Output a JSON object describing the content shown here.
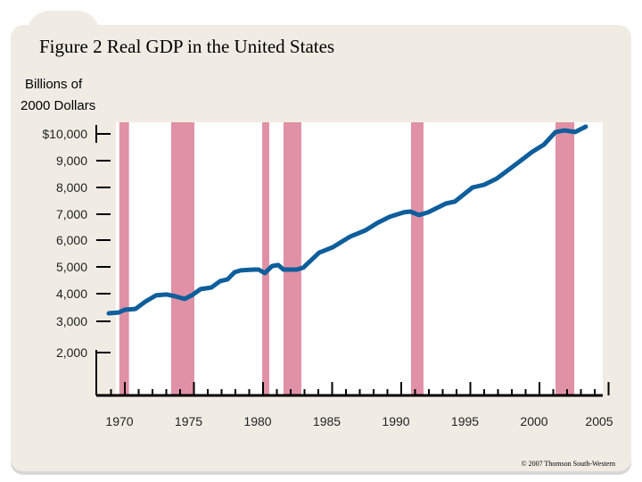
{
  "chart_data": {
    "type": "line",
    "title": "Figure 2 Real GDP in the United States",
    "ylabel_line1": "Billions of",
    "ylabel_line2": "2000 Dollars",
    "xlabel": "",
    "y_ticks": [
      "$10,000",
      "9,000",
      "8,000",
      "7,000",
      "6,000",
      "5,000",
      "4,000",
      "3,000",
      "2,000"
    ],
    "y_tick_values": [
      10000,
      9000,
      8000,
      7000,
      6000,
      5000,
      4000,
      3000,
      2000
    ],
    "x_ticks": [
      "1970",
      "1975",
      "1980",
      "1985",
      "1990",
      "1995",
      "2000",
      "2005"
    ],
    "x_tick_values": [
      1970,
      1975,
      1980,
      1985,
      1990,
      1995,
      2000,
      2005
    ],
    "xlim": [
      1969,
      2005
    ],
    "ylim": [
      2000,
      10300
    ],
    "grid": false,
    "series": [
      {
        "x": [
          1968.84,
          1969.55,
          1970.0,
          1970.77,
          1971.48,
          1972.26,
          1973.03,
          1973.68,
          1974.32,
          1974.84,
          1975.48,
          1976.26,
          1976.9,
          1977.42,
          1977.94,
          1978.39,
          1979.35,
          1979.68,
          1980.13,
          1980.65,
          1981.1,
          1981.48,
          1982.45,
          1982.9,
          1984.06,
          1985.03,
          1986.32,
          1987.42,
          1988.26,
          1989.16,
          1990.19,
          1990.65,
          1991.29,
          1991.94,
          1993.23,
          1993.87,
          1995.16,
          1996.0,
          1996.9,
          1998.39,
          1999.48,
          2000.32,
          2001.16,
          2001.81,
          2002.58,
          2003.35
        ],
        "values": [
          3290,
          3320,
          3420,
          3450,
          3710,
          3940,
          3970,
          3900,
          3810,
          3940,
          4170,
          4230,
          4470,
          4530,
          4800,
          4870,
          4900,
          4900,
          4770,
          5030,
          5070,
          4900,
          4900,
          4970,
          5530,
          5730,
          6140,
          6380,
          6660,
          6900,
          7070,
          7100,
          6970,
          7070,
          7400,
          7470,
          8000,
          8100,
          8330,
          8900,
          9330,
          9600,
          10070,
          10130,
          10070,
          10270
        ]
      }
    ],
    "recessions": [
      [
        1969.6,
        1970.3
      ],
      [
        1973.35,
        1975.03
      ],
      [
        1979.94,
        1980.45
      ],
      [
        1981.48,
        1982.77
      ],
      [
        1990.71,
        1991.61
      ],
      [
        2001.16,
        2002.52
      ]
    ],
    "colors": {
      "line": "#0e5e9c",
      "recession": "#e091a6",
      "panel": "#f0ece4"
    }
  },
  "footer": {
    "copyright": "© 2007 Thomson South-Western"
  }
}
